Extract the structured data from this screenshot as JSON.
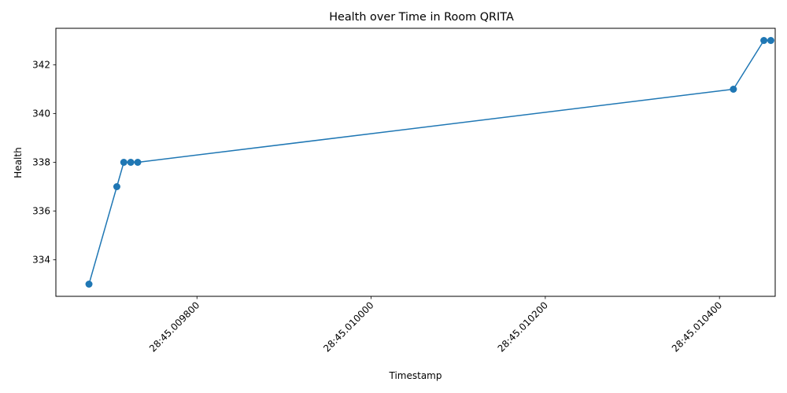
{
  "chart_data": {
    "type": "line",
    "title": "Health over Time in Room QRITA",
    "xlabel": "Timestamp",
    "ylabel": "Health",
    "x_ticks": [
      "28:45.009800",
      "28:45.010000",
      "28:45.010200",
      "28:45.010400"
    ],
    "y_ticks": [
      "334",
      "336",
      "338",
      "340",
      "342"
    ],
    "xlim": [
      "28:45.009638",
      "28:45.010464"
    ],
    "ylim": [
      332.5,
      343.5
    ],
    "grid": false,
    "series": [
      {
        "color": "#1f77b4",
        "marker": "circle",
        "points": [
          {
            "x": "28:45.009676",
            "y": 333
          },
          {
            "x": "28:45.009708",
            "y": 337
          },
          {
            "x": "28:45.009716",
            "y": 338
          },
          {
            "x": "28:45.009724",
            "y": 338
          },
          {
            "x": "28:45.009732",
            "y": 338
          },
          {
            "x": "28:45.010416",
            "y": 341
          },
          {
            "x": "28:45.010451",
            "y": 343
          },
          {
            "x": "28:45.010459",
            "y": 343
          }
        ]
      }
    ]
  }
}
